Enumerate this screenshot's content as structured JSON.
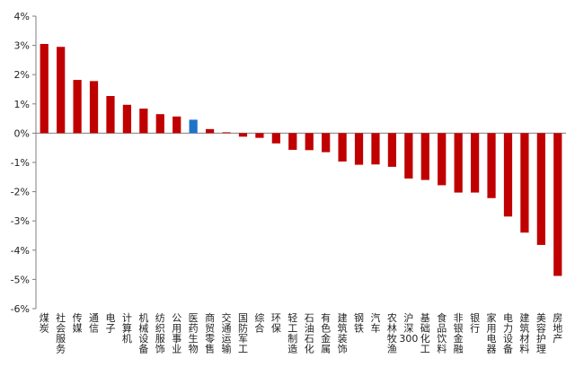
{
  "chart_data": {
    "type": "bar",
    "title": "",
    "xlabel": "",
    "ylabel": "",
    "ylim": [
      -6,
      4
    ],
    "yticks": [
      -6,
      -5,
      -4,
      -3,
      -2,
      -1,
      0,
      1,
      2,
      3,
      4
    ],
    "ytick_suffix": "%",
    "grid": false,
    "colors": {
      "default": "#C00000",
      "highlight": "#1F74C9",
      "axis": "#7F7F7F",
      "text": "#222222"
    },
    "highlight_index": 9,
    "categories": [
      "煤炭",
      "社会服务",
      "传媒",
      "通信",
      "电子",
      "计算机",
      "机械设备",
      "纺织服饰",
      "公用事业",
      "医药生物",
      "商贸零售",
      "交通运输",
      "国防军工",
      "综合",
      "环保",
      "轻工制造",
      "石油石化",
      "有色金属",
      "建筑装饰",
      "钢铁",
      "汽车",
      "农林牧渔",
      "沪深300",
      "基础化工",
      "食品饮料",
      "非银金融",
      "银行",
      "家用电器",
      "电力设备",
      "建筑材料",
      "美容护理",
      "房地产"
    ],
    "values": [
      3.05,
      2.95,
      1.82,
      1.78,
      1.27,
      0.97,
      0.84,
      0.65,
      0.57,
      0.46,
      0.14,
      0.03,
      -0.12,
      -0.16,
      -0.35,
      -0.57,
      -0.58,
      -0.65,
      -0.97,
      -1.08,
      -1.07,
      -1.15,
      -1.55,
      -1.6,
      -1.78,
      -2.03,
      -2.03,
      -2.22,
      -2.85,
      -3.4,
      -3.82,
      -4.88
    ]
  }
}
